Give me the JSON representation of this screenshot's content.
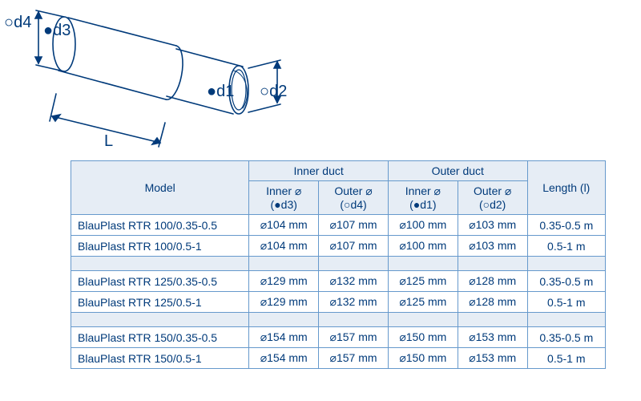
{
  "colors": {
    "line": "#003a7a",
    "text": "#003a7a",
    "header_bg": "#e6edf5",
    "border": "#6699cc"
  },
  "diagram": {
    "labels": {
      "od4": "○d4",
      "d3": "●d3",
      "d1": "●d1",
      "od2": "○d2",
      "L": "L"
    }
  },
  "table": {
    "headers": {
      "model": "Model",
      "inner_duct": "Inner duct",
      "outer_duct": "Outer duct",
      "inner_d3": "Inner ⌀\n(●d3)",
      "outer_d4": "Outer ⌀\n(○d4)",
      "inner_d1": "Inner ⌀\n(●d1)",
      "outer_d2": "Outer ⌀\n(○d2)",
      "length": "Length (l)"
    },
    "groups": [
      [
        {
          "model": "BlauPlast RTR 100/0.35-0.5",
          "d3": "⌀104 mm",
          "d4": "⌀107 mm",
          "d1": "⌀100 mm",
          "d2": "⌀103 mm",
          "len": "0.35-0.5 m"
        },
        {
          "model": "BlauPlast RTR 100/0.5-1",
          "d3": "⌀104 mm",
          "d4": "⌀107 mm",
          "d1": "⌀100 mm",
          "d2": "⌀103 mm",
          "len": "0.5-1 m"
        }
      ],
      [
        {
          "model": "BlauPlast RTR 125/0.35-0.5",
          "d3": "⌀129 mm",
          "d4": "⌀132 mm",
          "d1": "⌀125 mm",
          "d2": "⌀128 mm",
          "len": "0.35-0.5 m"
        },
        {
          "model": "BlauPlast RTR 125/0.5-1",
          "d3": "⌀129 mm",
          "d4": "⌀132 mm",
          "d1": "⌀125 mm",
          "d2": "⌀128 mm",
          "len": "0.5-1 m"
        }
      ],
      [
        {
          "model": "BlauPlast RTR 150/0.35-0.5",
          "d3": "⌀154 mm",
          "d4": "⌀157 mm",
          "d1": "⌀150 mm",
          "d2": "⌀153 mm",
          "len": "0.35-0.5 m"
        },
        {
          "model": "BlauPlast RTR 150/0.5-1",
          "d3": "⌀154 mm",
          "d4": "⌀157 mm",
          "d1": "⌀150 mm",
          "d2": "⌀153 mm",
          "len": "0.5-1 m"
        }
      ]
    ]
  }
}
